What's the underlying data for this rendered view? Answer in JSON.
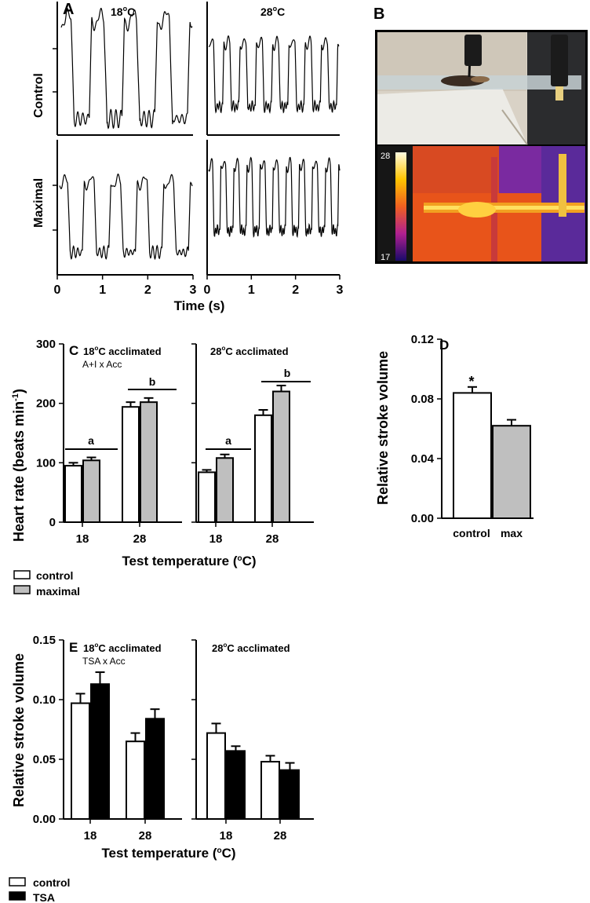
{
  "panel_a": {
    "letter": "A",
    "col_titles": [
      "18",
      "28"
    ],
    "deg": "o",
    "unit": "C",
    "row_labels": [
      "Control",
      "Maximal"
    ],
    "xticks": [
      "0",
      "1",
      "2",
      "3"
    ],
    "xlabel": "Time (s)"
  },
  "panel_b": {
    "letter": "B",
    "scale_max": "28",
    "scale_min": "17"
  },
  "panel_c": {
    "letter": "C",
    "ylabel": "Heart rate (beats min",
    "ylabel_sup": "-1",
    "ylabel_close": ")",
    "yticks": [
      "0",
      "100",
      "200",
      "300"
    ],
    "sub_18": "18",
    "sub_28": "28",
    "sub_rest": "C acclimated",
    "stat_note": "A+I x Acc",
    "sig_a": "a",
    "sig_b": "b",
    "xlabel_main": "Test temperature (",
    "xlabel_deg": "o",
    "xlabel_end": "C)",
    "legend": [
      "control",
      "maximal"
    ]
  },
  "panel_d": {
    "letter": "D",
    "ylabel": "Relative stroke volume",
    "yticks": [
      "0.00",
      "0.04",
      "0.08",
      "0.12"
    ],
    "star": "*",
    "xlabels": [
      "control",
      "max"
    ]
  },
  "panel_e": {
    "letter": "E",
    "ylabel": "Relative stroke volume",
    "yticks": [
      "0.00",
      "0.05",
      "0.10",
      "0.15"
    ],
    "stat_note": "TSA x Acc",
    "legend": [
      "control",
      "TSA"
    ]
  },
  "colors": {
    "control_fill": "#ffffff",
    "maximal_fill": "#bfbfbf",
    "tsa_fill": "#000000"
  },
  "chart_data": [
    {
      "type": "line",
      "panel": "A",
      "x_range": [
        0,
        3
      ],
      "xticks": [
        0,
        1,
        2,
        3
      ],
      "xlabel": "Time (s)",
      "series": [
        {
          "name": "Control 18",
          "beats_in_window": 4
        },
        {
          "name": "Control 28",
          "beats_in_window": 8
        },
        {
          "name": "Maximal 18",
          "beats_in_window": 5
        },
        {
          "name": "Maximal 28",
          "beats_in_window": 10
        }
      ]
    },
    {
      "type": "bar",
      "panel": "C",
      "ylim": [
        0,
        300
      ],
      "categories": [
        "18",
        "28"
      ],
      "groups": [
        {
          "series": [
            {
              "name": "control",
              "values": [
                95,
                194
              ],
              "errors": [
                5,
                8
              ]
            },
            {
              "name": "maximal",
              "values": [
                104,
                202
              ],
              "errors": [
                5,
                7
              ]
            }
          ]
        },
        {
          "series": [
            {
              "name": "control",
              "values": [
                84,
                180
              ],
              "errors": [
                4,
                9
              ]
            },
            {
              "name": "maximal",
              "values": [
                108,
                220
              ],
              "errors": [
                6,
                10
              ]
            }
          ]
        }
      ]
    },
    {
      "type": "bar",
      "panel": "D",
      "ylim": [
        0,
        0.12
      ],
      "categories": [
        "control",
        "max"
      ],
      "values": [
        0.084,
        0.062
      ],
      "errors": [
        0.004,
        0.004
      ]
    },
    {
      "type": "bar",
      "panel": "E",
      "ylim": [
        0,
        0.15
      ],
      "categories": [
        "18",
        "28"
      ],
      "groups": [
        {
          "series": [
            {
              "name": "control",
              "values": [
                0.097,
                0.065
              ],
              "errors": [
                0.008,
                0.007
              ]
            },
            {
              "name": "TSA",
              "values": [
                0.113,
                0.084
              ],
              "errors": [
                0.01,
                0.008
              ]
            }
          ]
        },
        {
          "series": [
            {
              "name": "control",
              "values": [
                0.072,
                0.048
              ],
              "errors": [
                0.008,
                0.005
              ]
            },
            {
              "name": "TSA",
              "values": [
                0.057,
                0.041
              ],
              "errors": [
                0.004,
                0.006
              ]
            }
          ]
        }
      ]
    }
  ]
}
